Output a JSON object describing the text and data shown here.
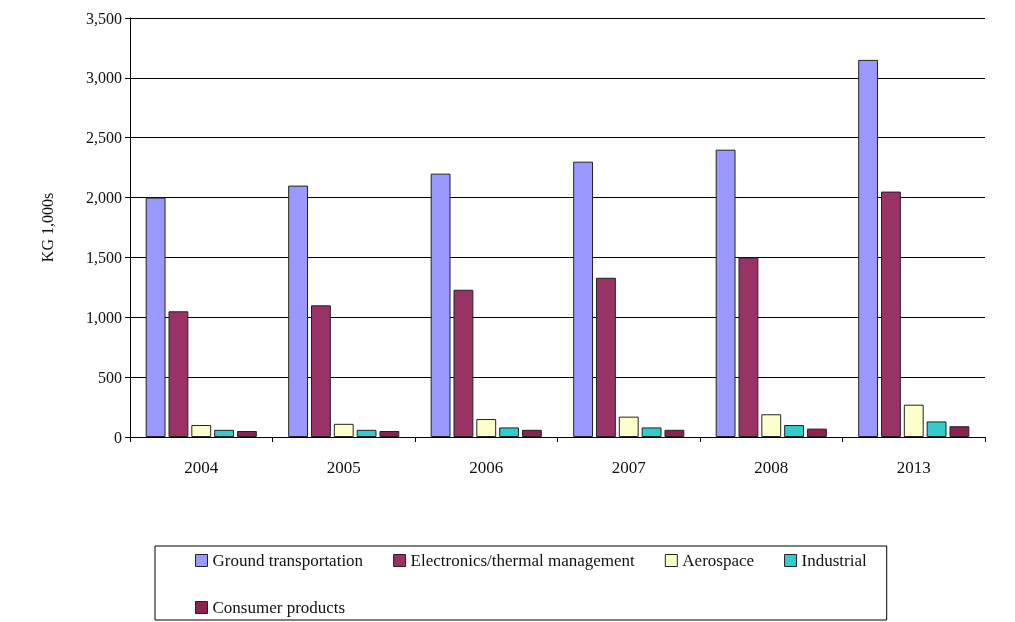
{
  "chart_data": {
    "type": "bar",
    "ylabel": "KG 1,000s",
    "categories": [
      "2004",
      "2005",
      "2006",
      "2007",
      "2008",
      "2013"
    ],
    "series": [
      {
        "name": "Ground transportation",
        "color": "#9999ff",
        "values": [
          2000,
          2100,
          2200,
          2300,
          2400,
          3150
        ]
      },
      {
        "name": "Electronics/thermal management",
        "color": "#993366",
        "values": [
          1050,
          1100,
          1230,
          1330,
          1500,
          2050
        ]
      },
      {
        "name": "Aerospace",
        "color": "#ffffcc",
        "values": [
          100,
          110,
          150,
          170,
          190,
          270
        ]
      },
      {
        "name": "Industrial",
        "color": "#33cccc",
        "values": [
          60,
          60,
          80,
          80,
          100,
          130
        ]
      },
      {
        "name": "Consumer products",
        "color": "#8b2252",
        "values": [
          50,
          50,
          60,
          60,
          70,
          90
        ]
      }
    ],
    "ylim": [
      0,
      3500
    ],
    "yticks": [
      0,
      500,
      {
        "value": 1000,
        "label": "1,000"
      },
      {
        "value": 1500,
        "label": "1,500"
      },
      {
        "value": 2000,
        "label": "2,000"
      },
      {
        "value": 2500,
        "label": "2,500"
      },
      {
        "value": 3000,
        "label": "3,000"
      },
      {
        "value": 3500,
        "label": "3,500"
      }
    ],
    "grid": "y",
    "legend": "bottom"
  }
}
